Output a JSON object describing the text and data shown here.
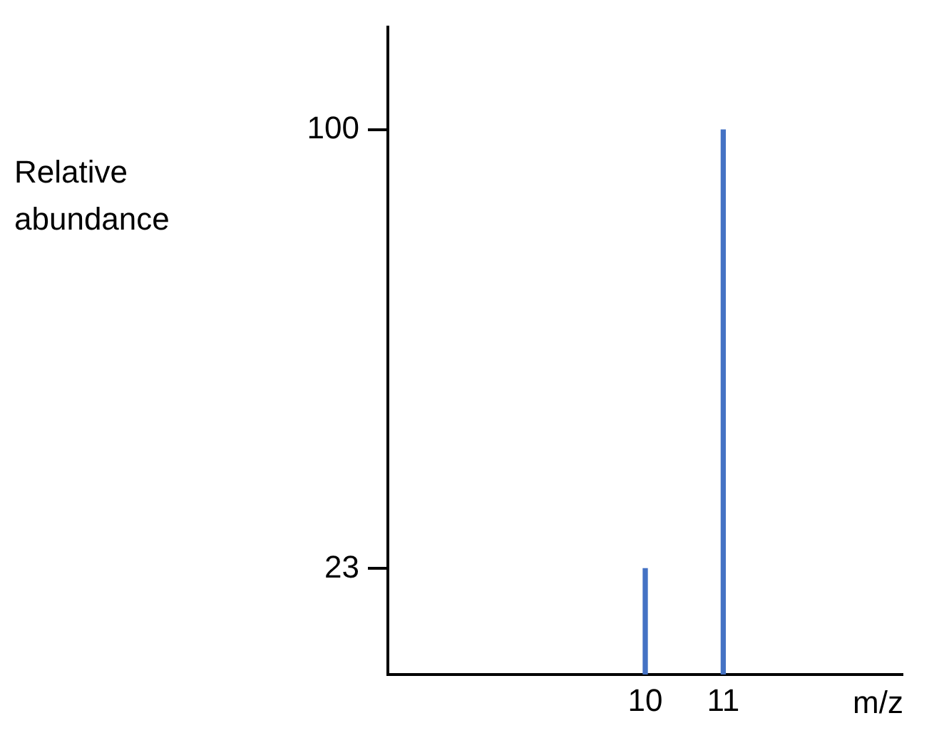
{
  "chart_data": {
    "type": "bar",
    "xlabel": "m/z",
    "ylabel": "Relative abundance",
    "x": [
      10,
      11
    ],
    "values": [
      23,
      100
    ],
    "color": "#4472c4",
    "xlim": [
      6.7,
      13.3
    ],
    "xticks": [
      10,
      11
    ],
    "ylim": [
      4.4,
      118
    ],
    "yticks": [
      23,
      100
    ],
    "grid": false,
    "legend": false
  }
}
